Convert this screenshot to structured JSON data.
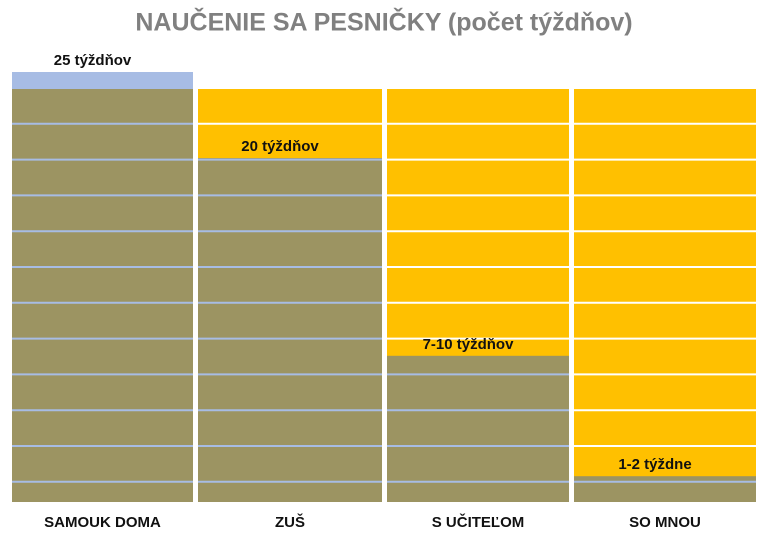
{
  "chart_data": {
    "type": "bar",
    "title": "NAUČENIE SA PESNIČKY (počet týždňov)",
    "categories": [
      "SAMOUK DOMA",
      "ZUŠ",
      "S UČITEĽOM",
      "SO MNOU"
    ],
    "values": [
      25,
      20,
      8.5,
      1.5
    ],
    "value_labels": [
      "25 týždňov",
      "20 týždňov",
      "7-10 týždňov",
      "1-2 týždne"
    ],
    "color": "#9c9462",
    "background_color": "#ffc000",
    "cap_color": "#a7bce4",
    "ylim": [
      0,
      25
    ]
  }
}
